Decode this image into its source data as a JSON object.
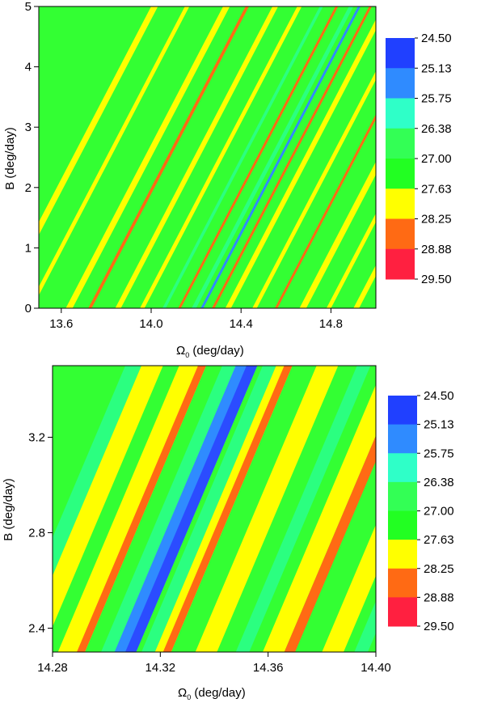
{
  "chart_data": [
    {
      "type": "heatmap",
      "title": "",
      "xlabel": "Ω₀ (deg/day)",
      "xlabel_main": "Ω",
      "xlabel_sub": "0",
      "xlabel_rest": " (deg/day)",
      "ylabel": "B (deg/day)",
      "xlim": [
        13.5,
        15.0
      ],
      "ylim": [
        0,
        5
      ],
      "xticks": [
        13.6,
        14.0,
        14.4,
        14.8
      ],
      "xtick_labels": [
        "13.6",
        "14.0",
        "14.4",
        "14.8"
      ],
      "yticks": [
        0,
        1,
        2,
        3,
        4,
        5
      ],
      "ytick_labels": [
        "0",
        "1",
        "2",
        "3",
        "4",
        "5"
      ],
      "levels": [
        "24.50",
        "25.13",
        "25.75",
        "26.38",
        "27.00",
        "27.63",
        "28.25",
        "28.88",
        "29.50"
      ],
      "legend_position": "right",
      "bands": [
        {
          "x0": 13.62,
          "level": "28.25",
          "width": 0.03
        },
        {
          "x0": 13.72,
          "level": "28.88",
          "width": 0.015
        },
        {
          "x0": 13.84,
          "level": "28.25",
          "width": 0.025
        },
        {
          "x0": 13.95,
          "level": "28.25",
          "width": 0.02
        },
        {
          "x0": 14.05,
          "level": "26.38",
          "width": 0.015
        },
        {
          "x0": 14.12,
          "level": "28.88",
          "width": 0.012
        },
        {
          "x0": 14.18,
          "level": "26.38",
          "width": 0.02
        },
        {
          "x0": 14.22,
          "level": "25.13",
          "width": 0.012
        },
        {
          "x0": 14.27,
          "level": "28.88",
          "width": 0.012
        },
        {
          "x0": 14.33,
          "level": "28.25",
          "width": 0.025
        },
        {
          "x0": 14.45,
          "level": "28.25",
          "width": 0.02
        },
        {
          "x0": 14.55,
          "level": "28.88",
          "width": 0.012
        },
        {
          "x0": 14.66,
          "level": "28.25",
          "width": 0.03
        },
        {
          "x0": 14.78,
          "level": "28.25",
          "width": 0.02
        },
        {
          "x0": 14.9,
          "level": "28.25",
          "width": 0.025
        },
        {
          "x0": 13.45,
          "level": "28.25",
          "width": 0.02
        },
        {
          "x0": 13.3,
          "level": "28.25",
          "width": 0.03
        }
      ],
      "band_slope": 0.14
    },
    {
      "type": "heatmap",
      "title": "",
      "xlabel": "Ω₀ (deg/day)",
      "xlabel_main": "Ω",
      "xlabel_sub": "0",
      "xlabel_rest": " (deg/day)",
      "ylabel": "B (deg/day)",
      "xlim": [
        14.28,
        14.4
      ],
      "ylim": [
        2.3,
        3.5
      ],
      "xticks": [
        14.28,
        14.32,
        14.36,
        14.4
      ],
      "xtick_labels": [
        "14.28",
        "14.32",
        "14.36",
        "14.40"
      ],
      "yticks": [
        2.4,
        2.8,
        3.2
      ],
      "ytick_labels": [
        "2.4",
        "2.8",
        "3.2"
      ],
      "levels": [
        "24.50",
        "25.13",
        "25.75",
        "26.38",
        "27.00",
        "27.63",
        "28.25",
        "28.88",
        "29.50"
      ],
      "legend_position": "right",
      "bands": [
        {
          "x0": 14.262,
          "level": "26.38",
          "width": 0.006
        },
        {
          "x0": 14.268,
          "level": "28.25",
          "width": 0.008
        },
        {
          "x0": 14.282,
          "level": "28.25",
          "width": 0.01
        },
        {
          "x0": 14.289,
          "level": "28.88",
          "width": 0.003
        },
        {
          "x0": 14.298,
          "level": "26.38",
          "width": 0.006
        },
        {
          "x0": 14.303,
          "level": "25.13",
          "width": 0.008
        },
        {
          "x0": 14.307,
          "level": "24.50",
          "width": 0.004
        },
        {
          "x0": 14.313,
          "level": "26.38",
          "width": 0.005
        },
        {
          "x0": 14.318,
          "level": "28.25",
          "width": 0.006
        },
        {
          "x0": 14.321,
          "level": "28.88",
          "width": 0.003
        },
        {
          "x0": 14.333,
          "level": "28.25",
          "width": 0.008
        },
        {
          "x0": 14.348,
          "level": "26.38",
          "width": 0.005
        },
        {
          "x0": 14.358,
          "level": "28.25",
          "width": 0.008
        },
        {
          "x0": 14.366,
          "level": "28.88",
          "width": 0.004
        },
        {
          "x0": 14.38,
          "level": "28.25",
          "width": 0.008
        },
        {
          "x0": 14.392,
          "level": "26.38",
          "width": 0.005
        }
      ],
      "band_slope": 0.0375
    }
  ],
  "colors": {
    "24.50": "#2b4cff",
    "25.13": "#2f8bff",
    "25.75": "#2fffc8",
    "26.38": "#2bff80",
    "27.00": "#22ff22",
    "27.63": "#22ff22",
    "28.25": "#ffff00",
    "28.88": "#ff6a14",
    "29.50": "#ff2040",
    "background": "#33ff33"
  },
  "legend_colors": [
    "#2040ff",
    "#2f8bff",
    "#2fffc8",
    "#33ff55",
    "#22ff22",
    "#ffff00",
    "#ff6a14",
    "#ff2040"
  ]
}
